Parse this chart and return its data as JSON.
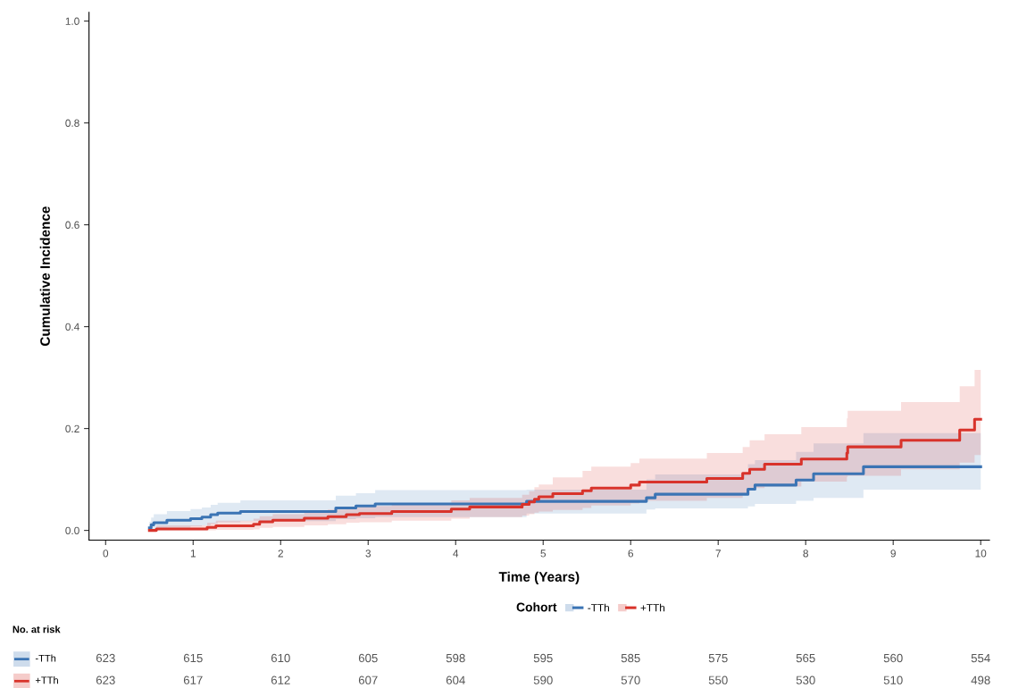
{
  "chart_data": {
    "type": "step",
    "xlabel": "Time (Years)",
    "ylabel": "Cumulative Incidence",
    "legend_title": "Cohort",
    "legend": "bottom",
    "grid": false,
    "marker": "none",
    "line_style": "solid",
    "xlim": [
      -0.19,
      10.1
    ],
    "ylim": [
      -0.019,
      1.017
    ],
    "xticks": [
      0,
      1,
      2,
      3,
      4,
      5,
      6,
      7,
      8,
      9,
      10
    ],
    "yticks": [
      {
        "value": 0,
        "label": "0.0"
      },
      {
        "value": 0.2,
        "label": "0.2"
      },
      {
        "value": 0.4,
        "label": "0.4"
      },
      {
        "value": 0.6,
        "label": "0.6"
      },
      {
        "value": 0.8,
        "label": "0.8"
      },
      {
        "value": 1.0,
        "label": "1.0"
      }
    ],
    "series": [
      {
        "name": "-TTh",
        "color": "#3b74b4",
        "x": [
          0.5,
          0.52,
          0.55,
          0.7,
          0.97,
          1.1,
          1.2,
          1.28,
          1.54,
          2.63,
          2.86,
          3.08,
          4.81,
          6.18,
          6.28,
          7.34,
          7.42,
          7.89,
          8.09,
          8.66,
          10
        ],
        "values": [
          0.005,
          0.011,
          0.015,
          0.02,
          0.023,
          0.026,
          0.031,
          0.034,
          0.037,
          0.044,
          0.048,
          0.052,
          0.057,
          0.064,
          0.071,
          0.081,
          0.089,
          0.099,
          0.111,
          0.125,
          0.125
        ],
        "upper": [
          0.017,
          0.025,
          0.032,
          0.038,
          0.042,
          0.045,
          0.05,
          0.054,
          0.059,
          0.068,
          0.073,
          0.079,
          0.08,
          0.1,
          0.11,
          0.13,
          0.138,
          0.154,
          0.171,
          0.191,
          0.191
        ],
        "lower": [
          0.0,
          0.001,
          0.002,
          0.005,
          0.008,
          0.01,
          0.013,
          0.016,
          0.018,
          0.022,
          0.024,
          0.026,
          0.033,
          0.041,
          0.043,
          0.047,
          0.052,
          0.058,
          0.064,
          0.08,
          0.08
        ]
      },
      {
        "name": "+TTh",
        "color": "#d8332b",
        "x": [
          0.5,
          0.58,
          1.16,
          1.26,
          1.69,
          1.76,
          1.91,
          2.27,
          2.54,
          2.75,
          2.9,
          3.27,
          3.95,
          4.16,
          4.76,
          4.84,
          4.9,
          4.95,
          5.11,
          5.45,
          5.55,
          6.0,
          6.1,
          6.87,
          7.28,
          7.36,
          7.53,
          7.95,
          8.47,
          8.48,
          9.09,
          9.76,
          9.93,
          10
        ],
        "values": [
          0.0,
          0.003,
          0.006,
          0.009,
          0.012,
          0.017,
          0.02,
          0.024,
          0.027,
          0.031,
          0.033,
          0.037,
          0.042,
          0.046,
          0.051,
          0.056,
          0.061,
          0.066,
          0.072,
          0.078,
          0.083,
          0.089,
          0.095,
          0.102,
          0.112,
          0.12,
          0.13,
          0.14,
          0.152,
          0.164,
          0.177,
          0.197,
          0.218,
          0.218
        ],
        "upper": [
          0.0,
          0.01,
          0.015,
          0.019,
          0.023,
          0.028,
          0.032,
          0.037,
          0.041,
          0.045,
          0.048,
          0.053,
          0.059,
          0.064,
          0.07,
          0.077,
          0.085,
          0.09,
          0.104,
          0.117,
          0.125,
          0.132,
          0.141,
          0.152,
          0.164,
          0.177,
          0.189,
          0.203,
          0.22,
          0.235,
          0.252,
          0.283,
          0.315,
          0.315
        ],
        "lower": [
          0.0,
          0.0,
          0.0,
          0.001,
          0.002,
          0.005,
          0.007,
          0.01,
          0.012,
          0.015,
          0.016,
          0.019,
          0.023,
          0.026,
          0.029,
          0.032,
          0.035,
          0.037,
          0.04,
          0.044,
          0.049,
          0.053,
          0.058,
          0.064,
          0.07,
          0.083,
          0.086,
          0.096,
          0.105,
          0.107,
          0.12,
          0.133,
          0.148,
          0.148
        ]
      }
    ],
    "annotations": [
      "No. at risk",
      "623",
      "615",
      "610",
      "605",
      "598",
      "595",
      "585",
      "575",
      "565",
      "560",
      "554",
      "623",
      "617",
      "612",
      "607",
      "604",
      "590",
      "570",
      "550",
      "530",
      "510",
      "498"
    ]
  }
}
